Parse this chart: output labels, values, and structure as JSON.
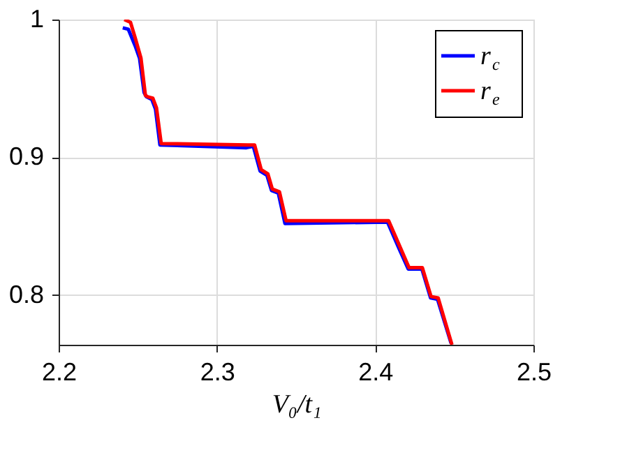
{
  "chart_data": {
    "type": "line",
    "xlabel": "V₀/t₁",
    "xlim": [
      2.2,
      2.5
    ],
    "ylim": [
      0.764,
      1
    ],
    "xticks": [
      2.2,
      2.3,
      2.4,
      2.5
    ],
    "yticks": [
      0.8,
      0.9,
      {
        "value": 1,
        "label": "1"
      }
    ],
    "grid": true,
    "legend": "top right",
    "marker": "none",
    "line_style": "solid",
    "series": [
      {
        "name": "r$_{c}$",
        "color": "#0000ff",
        "x": [
          2.2405,
          2.244,
          2.2483,
          2.2511,
          2.254,
          2.2554,
          2.2589,
          2.2612,
          2.264,
          2.3187,
          2.323,
          2.3273,
          2.3316,
          2.3345,
          2.3388,
          2.343,
          2.4078,
          2.415,
          2.4209,
          2.4295,
          2.435,
          2.4394,
          2.448
        ],
        "values": [
          0.994,
          0.993,
          0.981,
          0.972,
          0.947,
          0.944,
          0.942,
          0.935,
          0.909,
          0.907,
          0.908,
          0.89,
          0.887,
          0.876,
          0.874,
          0.852,
          0.853,
          0.834,
          0.819,
          0.819,
          0.798,
          0.797,
          0.765
        ]
      },
      {
        "name": "r$_{e}$",
        "color": "#ff0000",
        "x": [
          2.2415,
          2.2454,
          2.2483,
          2.252,
          2.2548,
          2.2562,
          2.2595,
          2.2618,
          2.2648,
          2.3195,
          2.3238,
          2.328,
          2.3322,
          2.335,
          2.3395,
          2.3437,
          2.4085,
          2.4157,
          2.4214,
          2.4298,
          2.4353,
          2.4398,
          2.4485
        ],
        "values": [
          1.0,
          0.998,
          0.987,
          0.972,
          0.945,
          0.944,
          0.943,
          0.936,
          0.91,
          0.909,
          0.909,
          0.891,
          0.888,
          0.877,
          0.875,
          0.854,
          0.854,
          0.835,
          0.82,
          0.82,
          0.799,
          0.798,
          0.764
        ]
      }
    ]
  }
}
